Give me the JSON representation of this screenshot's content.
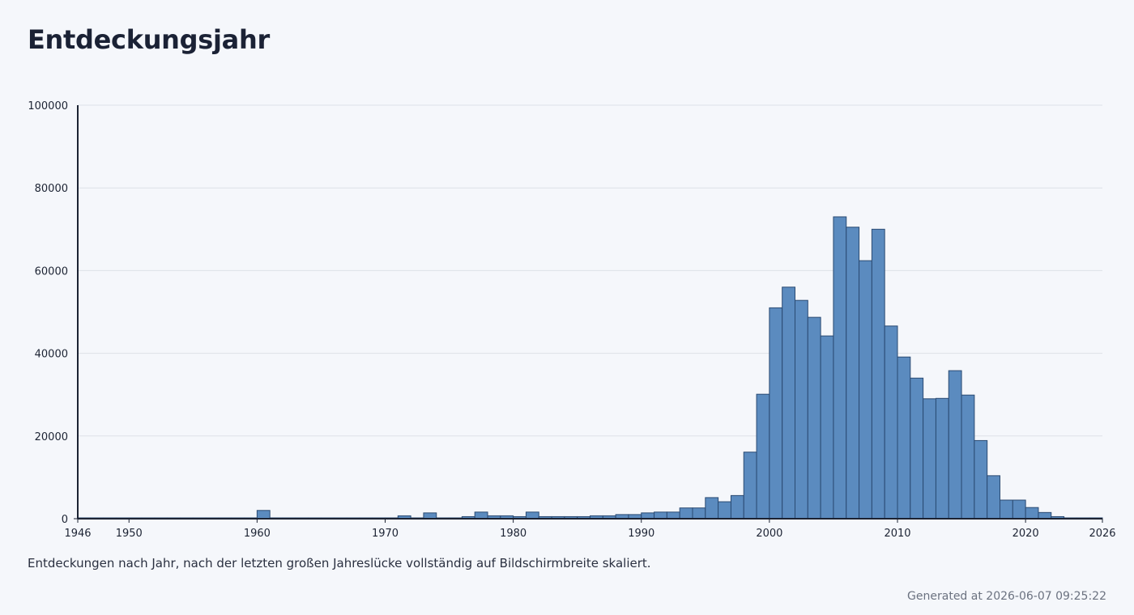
{
  "title": "Entdeckungsjahr",
  "caption": "Entdeckungen nach Jahr, nach der letzten großen Jahreslücke vollständig auf Bildschirmbreite skaliert.",
  "generated_label": "Generated at",
  "generated_at": "2026-06-07 09:25:22",
  "colors": {
    "bar_fill": "#5b8bbf",
    "bar_stroke": "#2a4a72",
    "axis": "#1c2333",
    "grid": "#dde1e8",
    "text": "#1c2333"
  },
  "chart_data": {
    "type": "bar",
    "xlabel": "",
    "ylabel": "",
    "xlim": [
      1946,
      2026
    ],
    "ylim": [
      0,
      100000
    ],
    "y_ticks": [
      "0",
      "20000",
      "40000",
      "60000",
      "80000",
      "100000"
    ],
    "y_tick_values": [
      0,
      20000,
      40000,
      60000,
      80000,
      100000
    ],
    "x_ticks": [
      "1946",
      "1950",
      "1960",
      "1970",
      "1980",
      "1990",
      "2000",
      "2010",
      "2020",
      "2026"
    ],
    "x_tick_values": [
      1946,
      1950,
      1960,
      1970,
      1980,
      1990,
      2000,
      2010,
      2020,
      2026
    ],
    "grid": true,
    "x": [
      1946,
      1947,
      1948,
      1949,
      1950,
      1951,
      1952,
      1953,
      1954,
      1955,
      1956,
      1957,
      1958,
      1959,
      1960,
      1961,
      1962,
      1963,
      1964,
      1965,
      1966,
      1967,
      1968,
      1969,
      1970,
      1971,
      1972,
      1973,
      1974,
      1975,
      1976,
      1977,
      1978,
      1979,
      1980,
      1981,
      1982,
      1983,
      1984,
      1985,
      1986,
      1987,
      1988,
      1989,
      1990,
      1991,
      1992,
      1993,
      1994,
      1995,
      1996,
      1997,
      1998,
      1999,
      2000,
      2001,
      2002,
      2003,
      2004,
      2005,
      2006,
      2007,
      2008,
      2009,
      2010,
      2011,
      2012,
      2013,
      2014,
      2015,
      2016,
      2017,
      2018,
      2019,
      2020,
      2021,
      2022,
      2023,
      2024,
      2025
    ],
    "values": [
      200,
      200,
      200,
      200,
      200,
      200,
      200,
      200,
      200,
      200,
      200,
      200,
      200,
      200,
      2000,
      200,
      200,
      200,
      200,
      200,
      200,
      200,
      200,
      200,
      200,
      700,
      200,
      1400,
      200,
      200,
      500,
      1600,
      700,
      700,
      500,
      1600,
      500,
      500,
      500,
      500,
      700,
      700,
      1000,
      1000,
      1400,
      1600,
      1600,
      2600,
      2600,
      5100,
      4100,
      5600,
      16100,
      30100,
      51000,
      56000,
      52800,
      48700,
      44200,
      73000,
      70500,
      62400,
      70000,
      46600,
      39100,
      34000,
      29000,
      29100,
      35800,
      29900,
      18900,
      10400,
      4500,
      4500,
      2700,
      1500,
      500,
      200,
      200,
      200
    ]
  }
}
